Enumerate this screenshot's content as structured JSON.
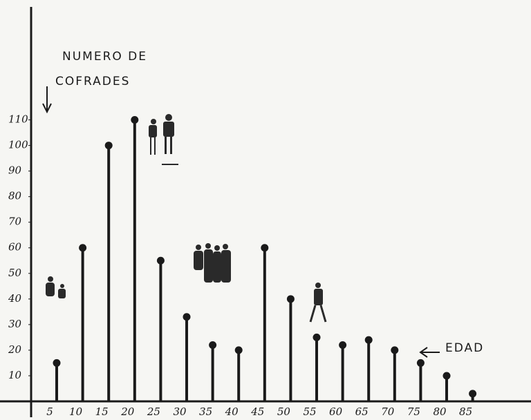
{
  "chart_data": {
    "type": "lollipop",
    "y_label": [
      "NUMERO DE",
      "COFRADES"
    ],
    "x_label": "EDAD",
    "categories": [
      "5",
      "10",
      "15",
      "20",
      "25",
      "30",
      "35",
      "40",
      "45",
      "50",
      "55",
      "60",
      "65",
      "70",
      "75",
      "80",
      "85"
    ],
    "values": [
      15,
      60,
      100,
      110,
      55,
      33,
      22,
      20,
      60,
      40,
      25,
      22,
      24,
      20,
      15,
      10,
      3
    ],
    "color": "#1a1a1a",
    "ylim": [
      0,
      115
    ],
    "yticks": [
      10,
      20,
      30,
      40,
      50,
      60,
      70,
      80,
      90,
      100,
      110
    ]
  }
}
